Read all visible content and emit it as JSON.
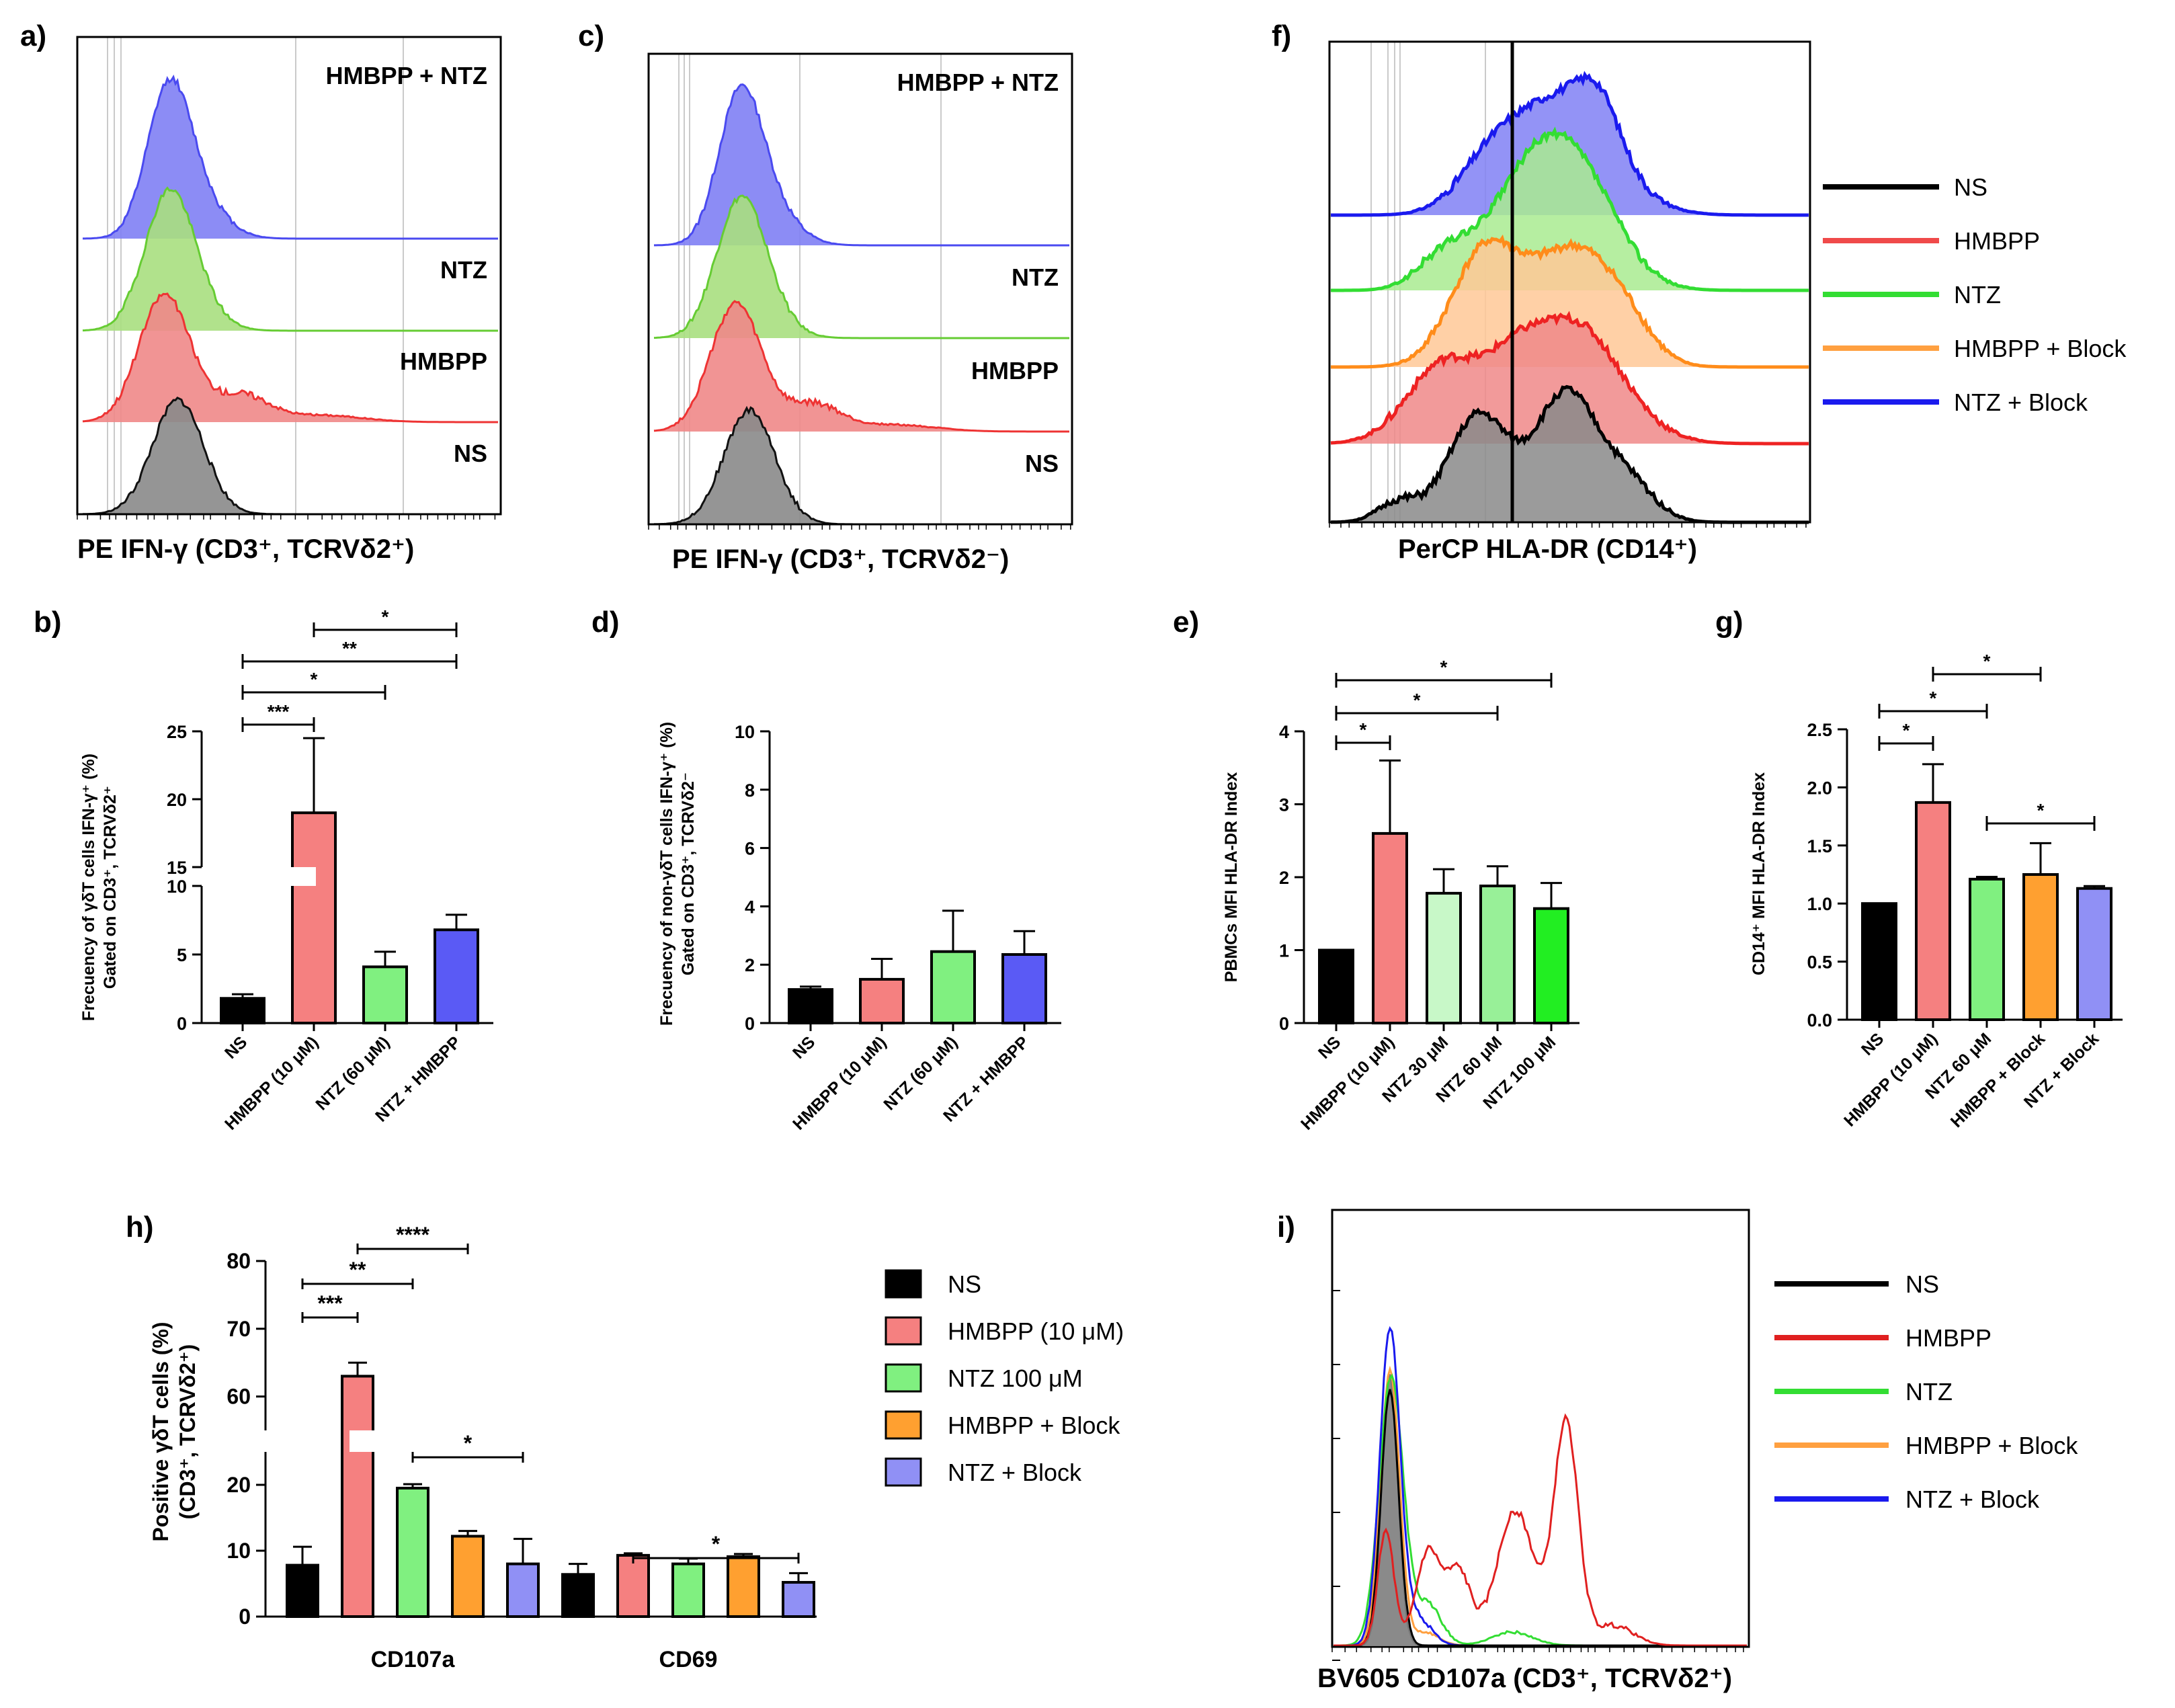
{
  "chart_data": [
    {
      "id": "a",
      "panel_label": "a)",
      "type": "histogram",
      "xlabel": "PE IFN-γ (CD3⁺, TCRVδ2⁺)",
      "tracks": [
        {
          "name": "HMBPP + NTZ",
          "color": "#4a4af0",
          "fill": "#8080f4"
        },
        {
          "name": "NTZ",
          "color": "#66cc33",
          "fill": "#a9df80"
        },
        {
          "name": "HMBPP",
          "color": "#ee3333",
          "fill": "#f08888"
        },
        {
          "name": "NS",
          "color": "#111111",
          "fill": "#8a8a8a"
        }
      ]
    },
    {
      "id": "c",
      "panel_label": "c)",
      "type": "histogram",
      "xlabel": "PE IFN-γ (CD3⁺, TCRVδ2⁻)",
      "tracks": [
        {
          "name": "HMBPP + NTZ",
          "color": "#4a4af0",
          "fill": "#8080f4"
        },
        {
          "name": "NTZ",
          "color": "#66cc33",
          "fill": "#a9df80"
        },
        {
          "name": "HMBPP",
          "color": "#ee3333",
          "fill": "#f08888"
        },
        {
          "name": "NS",
          "color": "#111111",
          "fill": "#8a8a8a"
        }
      ]
    },
    {
      "id": "f",
      "panel_label": "f)",
      "type": "histogram",
      "xlabel": "PerCP HLA-DR (CD14⁺)",
      "legend": [
        {
          "name": "NS",
          "color": "#000000"
        },
        {
          "name": "HMBPP",
          "color": "#f04a4a"
        },
        {
          "name": "NTZ",
          "color": "#33dd33"
        },
        {
          "name": "HMBPP + Block",
          "color": "#ffa040"
        },
        {
          "name": "NTZ + Block",
          "color": "#1a1aee"
        }
      ]
    },
    {
      "id": "b",
      "panel_label": "b)",
      "type": "bar",
      "ylabel_line1": "Frecuency of γδT cells IFN-γ⁺ (%)",
      "ylabel_line2": "Gated on CD3⁺, TCRVδ2⁺",
      "categories": [
        "NS",
        "HMBPP (10 μM)",
        "NTZ (60 μM)",
        "NTZ + HMBPP"
      ],
      "values": [
        1.8,
        19,
        4.1,
        6.8
      ],
      "errors": [
        0.3,
        5.5,
        1.1,
        1.1
      ],
      "colors": [
        "#000000",
        "#f58080",
        "#80f080",
        "#5a5af5"
      ],
      "yaxis_broken": true,
      "lower_ticks": [
        0,
        5,
        10
      ],
      "upper_ticks": [
        15,
        20,
        25
      ],
      "significance": [
        {
          "label": "***"
        },
        {
          "label": "*"
        },
        {
          "label": "**"
        },
        {
          "label": "*"
        }
      ]
    },
    {
      "id": "d",
      "panel_label": "d)",
      "type": "bar",
      "ylabel_line1": "Frecuency of non-γδT cells IFN-γ⁺ (%)",
      "ylabel_line2": "Gated on CD3⁺, TCRVδ2⁻",
      "categories": [
        "NS",
        "HMBPP (10 μM)",
        "NTZ (60 μM)",
        "NTZ + HMBPP"
      ],
      "values": [
        1.15,
        1.5,
        2.45,
        2.35
      ],
      "errors": [
        0.1,
        0.7,
        1.4,
        0.8
      ],
      "colors": [
        "#000000",
        "#f58080",
        "#80f080",
        "#5a5af5"
      ],
      "ylim": [
        0,
        10
      ],
      "ticks": [
        0,
        2,
        4,
        6,
        8,
        10
      ]
    },
    {
      "id": "e",
      "panel_label": "e)",
      "type": "bar",
      "ylabel": "PBMCs MFI HLA-DR Index",
      "categories": [
        "NS",
        "HMBPP (10 μM)",
        "NTZ 30 μM",
        "NTZ 60 μM",
        "NTZ 100 μM"
      ],
      "values": [
        1.0,
        2.6,
        1.78,
        1.88,
        1.57
      ],
      "errors": [
        0,
        1.0,
        0.33,
        0.27,
        0.35
      ],
      "colors": [
        "#000000",
        "#f58080",
        "#c8f8c8",
        "#98f098",
        "#22ee22"
      ],
      "ylim": [
        0,
        4
      ],
      "ticks": [
        0,
        1,
        2,
        3,
        4
      ],
      "significance": [
        {
          "label": "*"
        },
        {
          "label": "*"
        },
        {
          "label": "*"
        }
      ]
    },
    {
      "id": "g",
      "panel_label": "g)",
      "type": "bar",
      "ylabel": "CD14⁺ MFI HLA-DR Index",
      "categories": [
        "NS",
        "HMBPP (10 μM)",
        "NTZ 60 μM",
        "HMBPP + Block",
        "NTZ + Block"
      ],
      "values": [
        1.0,
        1.87,
        1.21,
        1.25,
        1.13
      ],
      "errors": [
        0,
        0.33,
        0.02,
        0.27,
        0.02
      ],
      "colors": [
        "#000000",
        "#f58080",
        "#80f080",
        "#ffa030",
        "#9090f5"
      ],
      "ylim": [
        0,
        2.5
      ],
      "ticks": [
        "0.0",
        "0.5",
        "1.0",
        "1.5",
        "2.0",
        "2.5"
      ],
      "significance": [
        {
          "label": "*"
        },
        {
          "label": "*"
        },
        {
          "label": "*"
        },
        {
          "label": "*"
        }
      ]
    },
    {
      "id": "h",
      "panel_label": "h)",
      "type": "bar",
      "ylabel_line1": "Positive γδT cells (%)",
      "ylabel_line2": "(CD3⁺, TCRVδ2⁺)",
      "groups": [
        "CD107a",
        "CD69"
      ],
      "series": [
        {
          "name": "NS",
          "color": "#000000",
          "values": [
            7.8,
            6.4
          ],
          "errors": [
            2.8,
            1.6
          ]
        },
        {
          "name": "HMBPP (10 μM)",
          "color": "#f58080",
          "values": [
            63,
            9.3
          ],
          "errors": [
            2,
            0.3
          ]
        },
        {
          "name": "NTZ 100 μM",
          "color": "#80f080",
          "values": [
            19.5,
            8
          ],
          "errors": [
            0.6,
            0.8
          ]
        },
        {
          "name": "HMBPP + Block",
          "color": "#ffa030",
          "values": [
            12.2,
            9.1
          ],
          "errors": [
            0.8,
            0.4
          ]
        },
        {
          "name": "NTZ + Block",
          "color": "#9090f5",
          "values": [
            8,
            5.2
          ],
          "errors": [
            3.8,
            1.4
          ]
        }
      ],
      "yaxis_broken": true,
      "lower_ticks": [
        0,
        10,
        20
      ],
      "upper_ticks": [
        60,
        70,
        80
      ],
      "significance": [
        {
          "label": "***"
        },
        {
          "label": "**"
        },
        {
          "label": "****"
        },
        {
          "label": "*"
        },
        {
          "label": "*"
        }
      ]
    },
    {
      "id": "i",
      "panel_label": "i)",
      "type": "histogram",
      "xlabel": "BV605 CD107a (CD3⁺, TCRVδ2⁺)",
      "legend": [
        {
          "name": "NS",
          "color": "#000000"
        },
        {
          "name": "HMBPP",
          "color": "#e02020"
        },
        {
          "name": "NTZ",
          "color": "#33dd33"
        },
        {
          "name": "HMBPP + Block",
          "color": "#ffa040"
        },
        {
          "name": "NTZ + Block",
          "color": "#1a1aee"
        }
      ]
    }
  ]
}
